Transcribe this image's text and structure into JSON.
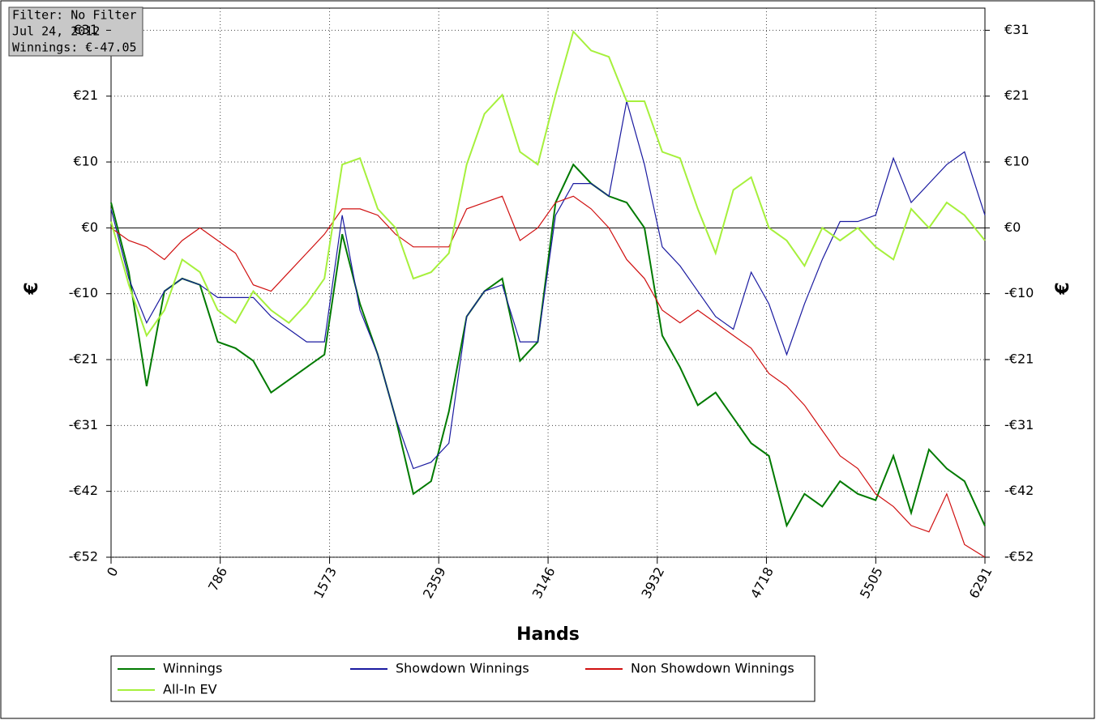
{
  "overlay": {
    "lines": [
      "Filter: No Filter",
      "Jul 24, 2012",
      "Winnings: €-47.05"
    ]
  },
  "chart_data": {
    "type": "line",
    "ylabel": "€",
    "y2label": "€",
    "xlabel": "Hands",
    "x": [
      0,
      128,
      256,
      384,
      512,
      640,
      768,
      896,
      1024,
      1152,
      1280,
      1408,
      1536,
      1664,
      1792,
      1920,
      2048,
      2176,
      2304,
      2432,
      2560,
      2688,
      2816,
      2944,
      3072,
      3200,
      3328,
      3456,
      3584,
      3712,
      3840,
      3968,
      4096,
      4224,
      4352,
      4480,
      4608,
      4736,
      4864,
      4992,
      5120,
      5248,
      5376,
      5504,
      5632,
      5760,
      5888,
      6016,
      6144,
      6291
    ],
    "xlim": [
      0,
      6291
    ],
    "xticks": [
      0,
      786,
      1573,
      2359,
      3146,
      3932,
      4718,
      5505,
      6291
    ],
    "ylim": [
      -52,
      34.7
    ],
    "yticks": [
      {
        "value": 31.2,
        "label": "€31"
      },
      {
        "value": 20.8,
        "label": "€21"
      },
      {
        "value": 10.4,
        "label": "€10"
      },
      {
        "value": 0,
        "label": "€0"
      },
      {
        "value": -10.4,
        "label": "-€10"
      },
      {
        "value": -20.8,
        "label": "-€21"
      },
      {
        "value": -31.2,
        "label": "-€31"
      },
      {
        "value": -41.6,
        "label": "-€42"
      },
      {
        "value": -52,
        "label": "-€52"
      }
    ],
    "grid": true,
    "series": [
      {
        "name": "Winnings",
        "color": "#007a00",
        "values": [
          4,
          -7,
          -25,
          -10,
          -8,
          -9,
          -18,
          -19,
          -21,
          -26,
          -24,
          -22,
          -20,
          -1,
          -12,
          -20,
          -30,
          -42,
          -40,
          -29,
          -14,
          -10,
          -8,
          -21,
          -18,
          4,
          10,
          7,
          5,
          4,
          0,
          -17,
          -22,
          -28,
          -26,
          -30,
          -34,
          -36,
          -47,
          -42,
          -44,
          -40,
          -42,
          -43,
          -36,
          -45,
          -35,
          -38,
          -40,
          -47.05
        ]
      },
      {
        "name": "Showdown Winnings",
        "color": "#1a1aa0",
        "values": [
          3,
          -8,
          -15,
          -10,
          -8,
          -9,
          -11,
          -11,
          -11,
          -14,
          -16,
          -18,
          -18,
          2,
          -13,
          -20,
          -30,
          -38,
          -37,
          -34,
          -14,
          -10,
          -9,
          -18,
          -18,
          2,
          7,
          7,
          5,
          20,
          10,
          -3,
          -6,
          -10,
          -14,
          -16,
          -7,
          -12,
          -20,
          -12,
          -5,
          1,
          1,
          2,
          11,
          4,
          7,
          10,
          12,
          2
        ]
      },
      {
        "name": "Non Showdown Winnings",
        "color": "#d01010",
        "values": [
          0,
          -2,
          -3,
          -5,
          -2,
          0,
          -2,
          -4,
          -9,
          -10,
          -7,
          -4,
          -1,
          3,
          3,
          2,
          -1,
          -3,
          -3,
          -3,
          3,
          4,
          5,
          -2,
          0,
          4,
          5,
          3,
          0,
          -5,
          -8,
          -13,
          -15,
          -13,
          -15,
          -17,
          -19,
          -23,
          -25,
          -28,
          -32,
          -36,
          -38,
          -42,
          -44,
          -47,
          -48,
          -42,
          -50,
          -52
        ]
      },
      {
        "name": "All-In EV",
        "color": "#a6f03c",
        "values": [
          1,
          -9,
          -17,
          -13,
          -5,
          -7,
          -13,
          -15,
          -10,
          -13,
          -15,
          -12,
          -8,
          10,
          11,
          3,
          0,
          -8,
          -7,
          -4,
          10,
          18,
          21,
          12,
          10,
          21,
          31,
          28,
          27,
          20,
          20,
          12,
          11,
          3,
          -4,
          6,
          8,
          0,
          -2,
          -6,
          0,
          -2,
          0,
          -3,
          -5,
          3,
          0,
          4,
          2,
          -2
        ]
      }
    ]
  }
}
